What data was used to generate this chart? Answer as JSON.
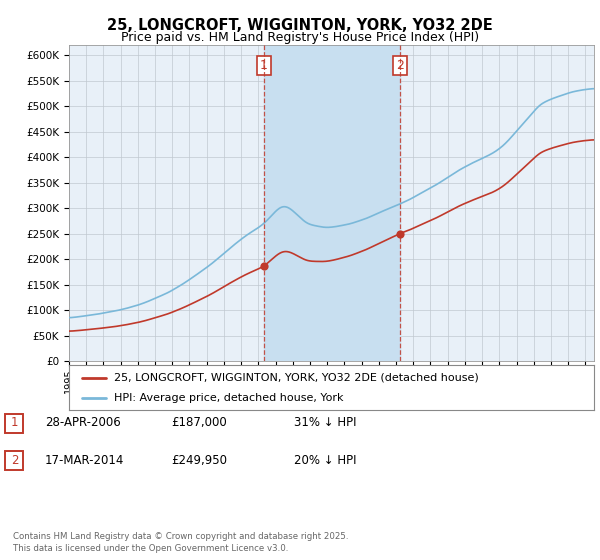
{
  "title": "25, LONGCROFT, WIGGINTON, YORK, YO32 2DE",
  "subtitle": "Price paid vs. HM Land Registry's House Price Index (HPI)",
  "ylim": [
    0,
    620000
  ],
  "yticks": [
    0,
    50000,
    100000,
    150000,
    200000,
    250000,
    300000,
    350000,
    400000,
    450000,
    500000,
    550000,
    600000
  ],
  "ytick_labels": [
    "£0",
    "£50K",
    "£100K",
    "£150K",
    "£200K",
    "£250K",
    "£300K",
    "£350K",
    "£400K",
    "£450K",
    "£500K",
    "£550K",
    "£600K"
  ],
  "hpi_color": "#7ab8d9",
  "price_color": "#c0392b",
  "sale1_date": 2006.32,
  "sale1_price": 187000,
  "sale2_date": 2014.21,
  "sale2_price": 249950,
  "legend_label1": "25, LONGCROFT, WIGGINTON, YORK, YO32 2DE (detached house)",
  "legend_label2": "HPI: Average price, detached house, York",
  "table_row1": [
    "1",
    "28-APR-2006",
    "£187,000",
    "31% ↓ HPI"
  ],
  "table_row2": [
    "2",
    "17-MAR-2014",
    "£249,950",
    "20% ↓ HPI"
  ],
  "footer": "Contains HM Land Registry data © Crown copyright and database right 2025.\nThis data is licensed under the Open Government Licence v3.0.",
  "bg_color": "#ffffff",
  "plot_bg_color": "#e8f0f8",
  "shade_color": "#c8dff0",
  "grid_color": "#c0c8d0",
  "title_fontsize": 10.5,
  "subtitle_fontsize": 9
}
